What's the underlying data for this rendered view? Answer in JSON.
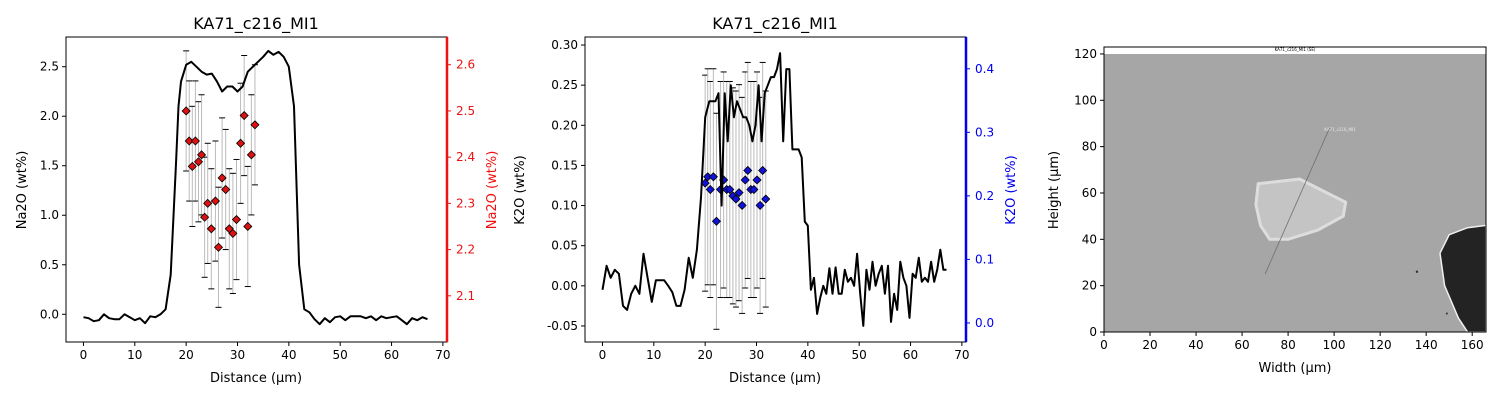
{
  "chart_data": [
    {
      "type": "line",
      "title": "KA71_c216_MI1",
      "xlabel": "Distance (µm)",
      "ylabel": "Na2O (wt%)",
      "ylabel_right": "Na2O (wt%)",
      "xlim": [
        -3.4,
        70.8
      ],
      "ylim": [
        -0.28,
        2.8
      ],
      "ylim_right": [
        2.0,
        2.66
      ],
      "x_ticks": [
        0,
        10,
        20,
        30,
        40,
        50,
        60,
        70
      ],
      "y_ticks": [
        0.0,
        0.5,
        1.0,
        1.5,
        2.0,
        2.5
      ],
      "y_ticks_right": [
        2.1,
        2.2,
        2.3,
        2.4,
        2.5,
        2.6
      ],
      "grid": false,
      "colors": {
        "profile": "#000000",
        "points": "#dd1111",
        "right_axis": "#ee1111",
        "errorbars": "#bbbbbb"
      },
      "profile": {
        "x": [
          0,
          1,
          2,
          3,
          4,
          5,
          6,
          7,
          8,
          9,
          10,
          11,
          12,
          13,
          14,
          15,
          16,
          17,
          18,
          18.5,
          19,
          20,
          21,
          22,
          23,
          24,
          25,
          26,
          27,
          28,
          29,
          30,
          31,
          32,
          33,
          34,
          35,
          36,
          37,
          38,
          39,
          40,
          41,
          42,
          43,
          44,
          45,
          46,
          47,
          48,
          49,
          50,
          51,
          52,
          53,
          54,
          55,
          56,
          57,
          58,
          59,
          60,
          61,
          62,
          63,
          64,
          65,
          66,
          67
        ],
        "y": [
          -0.03,
          -0.04,
          -0.07,
          -0.06,
          0.0,
          -0.04,
          -0.05,
          -0.05,
          0.0,
          -0.03,
          -0.06,
          -0.04,
          -0.09,
          -0.02,
          -0.03,
          0.0,
          0.05,
          0.4,
          1.5,
          2.1,
          2.35,
          2.52,
          2.55,
          2.5,
          2.45,
          2.42,
          2.43,
          2.35,
          2.25,
          2.3,
          2.3,
          2.25,
          2.3,
          2.45,
          2.5,
          2.55,
          2.6,
          2.66,
          2.62,
          2.65,
          2.6,
          2.5,
          2.1,
          0.5,
          0.05,
          0.02,
          -0.05,
          -0.1,
          -0.04,
          -0.08,
          -0.03,
          -0.02,
          -0.06,
          -0.02,
          -0.02,
          -0.02,
          -0.04,
          -0.02,
          -0.06,
          -0.02,
          -0.04,
          -0.03,
          -0.02,
          -0.06,
          -0.1,
          -0.04,
          -0.06,
          -0.03,
          -0.05
        ]
      },
      "points": [
        {
          "x": 20.0,
          "y": 2.5,
          "err": 0.13
        },
        {
          "x": 20.6,
          "y": 2.435,
          "err": 0.13
        },
        {
          "x": 21.2,
          "y": 2.38,
          "err": 0.13
        },
        {
          "x": 21.8,
          "y": 2.435,
          "err": 0.13
        },
        {
          "x": 22.4,
          "y": 2.39,
          "err": 0.13
        },
        {
          "x": 23.0,
          "y": 2.405,
          "err": 0.13
        },
        {
          "x": 23.6,
          "y": 2.27,
          "err": 0.13
        },
        {
          "x": 24.2,
          "y": 2.3,
          "err": 0.13
        },
        {
          "x": 24.9,
          "y": 2.245,
          "err": 0.13
        },
        {
          "x": 25.7,
          "y": 2.305,
          "err": 0.13
        },
        {
          "x": 26.3,
          "y": 2.205,
          "err": 0.13
        },
        {
          "x": 27.0,
          "y": 2.355,
          "err": 0.13
        },
        {
          "x": 27.7,
          "y": 2.33,
          "err": 0.13
        },
        {
          "x": 28.4,
          "y": 2.245,
          "err": 0.13
        },
        {
          "x": 29.1,
          "y": 2.235,
          "err": 0.13
        },
        {
          "x": 29.8,
          "y": 2.265,
          "err": 0.13
        },
        {
          "x": 30.6,
          "y": 2.43,
          "err": 0.13
        },
        {
          "x": 31.3,
          "y": 2.49,
          "err": 0.13
        },
        {
          "x": 32.0,
          "y": 2.25,
          "err": 0.13
        },
        {
          "x": 32.7,
          "y": 2.405,
          "err": 0.13
        },
        {
          "x": 33.4,
          "y": 2.47,
          "err": 0.13
        }
      ]
    },
    {
      "type": "line",
      "title": "KA71_c216_MI1",
      "xlabel": "Distance (µm)",
      "ylabel": "K2O (wt%)",
      "ylabel_right": "K2O (wt%)",
      "xlim": [
        -3.4,
        70.8
      ],
      "ylim": [
        -0.07,
        0.31
      ],
      "ylim_right": [
        -0.03,
        0.45
      ],
      "x_ticks": [
        0,
        10,
        20,
        30,
        40,
        50,
        60,
        70
      ],
      "y_ticks": [
        -0.05,
        0.0,
        0.05,
        0.1,
        0.15,
        0.2,
        0.25,
        0.3
      ],
      "y_ticks_right": [
        0.0,
        0.1,
        0.2,
        0.3,
        0.4
      ],
      "grid": false,
      "colors": {
        "profile": "#000000",
        "points": "#1111dd",
        "right_axis": "#0000ee",
        "errorbars": "#bbbbbb"
      },
      "profile": {
        "x": [
          0,
          0.8,
          1.6,
          2.4,
          3.2,
          4.0,
          4.8,
          5.6,
          6.4,
          7.2,
          8.0,
          8.8,
          9.6,
          10.4,
          11.2,
          12.0,
          12.8,
          13.6,
          14.4,
          15.2,
          16.0,
          16.8,
          17.6,
          18.4,
          19.2,
          20.0,
          20.8,
          21.4,
          22.0,
          22.6,
          23.2,
          23.8,
          24.4,
          25.0,
          25.6,
          26.2,
          26.8,
          27.4,
          28.0,
          28.6,
          29.2,
          29.8,
          30.4,
          31.0,
          31.6,
          32.2,
          32.8,
          33.4,
          34.0,
          34.6,
          35.2,
          35.8,
          36.4,
          37.0,
          37.6,
          38.2,
          38.8,
          39.4,
          40.0,
          40.6,
          41.2,
          41.8,
          42.4,
          43.0,
          43.6,
          44.2,
          44.8,
          45.4,
          46.0,
          46.6,
          47.2,
          47.8,
          48.4,
          49.0,
          49.6,
          50.2,
          50.8,
          51.4,
          52.0,
          52.6,
          53.2,
          53.8,
          54.4,
          55.0,
          55.6,
          56.2,
          56.8,
          57.4,
          58.0,
          58.6,
          59.2,
          59.8,
          60.4,
          61.0,
          61.6,
          62.2,
          62.8,
          63.4,
          64.0,
          64.6,
          65.2,
          65.8,
          66.4,
          67.0
        ],
        "y": [
          -0.005,
          0.025,
          0.01,
          0.02,
          0.015,
          -0.025,
          -0.03,
          -0.01,
          0.0,
          -0.01,
          0.04,
          0.01,
          -0.02,
          0.007,
          0.007,
          0.007,
          0.0,
          -0.008,
          -0.025,
          -0.025,
          -0.005,
          0.035,
          0.01,
          0.045,
          0.11,
          0.21,
          0.23,
          0.23,
          0.23,
          0.24,
          0.1,
          0.24,
          0.18,
          0.25,
          0.21,
          0.23,
          0.22,
          0.21,
          0.21,
          0.2,
          0.18,
          0.2,
          0.25,
          0.18,
          0.24,
          0.25,
          0.26,
          0.26,
          0.27,
          0.29,
          0.18,
          0.27,
          0.27,
          0.17,
          0.17,
          0.17,
          0.16,
          0.08,
          0.075,
          -0.005,
          0.01,
          -0.035,
          -0.015,
          0.0,
          -0.01,
          0.022,
          -0.01,
          0.023,
          -0.01,
          -0.01,
          0.02,
          0.005,
          0.01,
          0.0,
          0.04,
          -0.01,
          -0.05,
          0.02,
          -0.005,
          0.03,
          0.0,
          0.015,
          0.025,
          -0.01,
          0.025,
          -0.045,
          -0.01,
          -0.03,
          0.03,
          0.01,
          0.0,
          -0.04,
          0.015,
          0.01,
          0.035,
          0.005,
          0.01,
          0.005,
          0.03,
          0.005,
          0.02,
          0.045,
          0.02,
          0.02
        ]
      },
      "points": [
        {
          "x": 20.0,
          "y": 0.22,
          "err": 0.17
        },
        {
          "x": 20.5,
          "y": 0.23,
          "err": 0.17
        },
        {
          "x": 21.0,
          "y": 0.21,
          "err": 0.17
        },
        {
          "x": 21.6,
          "y": 0.23,
          "err": 0.17
        },
        {
          "x": 22.2,
          "y": 0.16,
          "err": 0.17
        },
        {
          "x": 23.0,
          "y": 0.21,
          "err": 0.17
        },
        {
          "x": 23.6,
          "y": 0.225,
          "err": 0.17
        },
        {
          "x": 24.2,
          "y": 0.21,
          "err": 0.17
        },
        {
          "x": 24.8,
          "y": 0.21,
          "err": 0.17
        },
        {
          "x": 25.4,
          "y": 0.2,
          "err": 0.17
        },
        {
          "x": 26.0,
          "y": 0.195,
          "err": 0.17
        },
        {
          "x": 26.6,
          "y": 0.205,
          "err": 0.17
        },
        {
          "x": 27.2,
          "y": 0.185,
          "err": 0.17
        },
        {
          "x": 27.8,
          "y": 0.225,
          "err": 0.17
        },
        {
          "x": 28.3,
          "y": 0.24,
          "err": 0.17
        },
        {
          "x": 28.9,
          "y": 0.21,
          "err": 0.17
        },
        {
          "x": 29.5,
          "y": 0.21,
          "err": 0.17
        },
        {
          "x": 30.1,
          "y": 0.225,
          "err": 0.17
        },
        {
          "x": 30.7,
          "y": 0.185,
          "err": 0.17
        },
        {
          "x": 31.2,
          "y": 0.24,
          "err": 0.17
        },
        {
          "x": 31.8,
          "y": 0.195,
          "err": 0.17
        }
      ]
    },
    {
      "type": "image",
      "title": "",
      "xlabel": "Width (µm)",
      "ylabel": "Height (µm)",
      "xlim": [
        0,
        166
      ],
      "ylim": [
        0,
        123
      ],
      "x_ticks": [
        0,
        20,
        40,
        60,
        80,
        100,
        120,
        140,
        160
      ],
      "y_ticks": [
        0,
        20,
        40,
        60,
        80,
        100,
        120
      ],
      "image_label": "KA71_c216_MI1 (SE)",
      "transect_label": "KA71_c216_MI1",
      "transect": {
        "start": [
          70,
          25
        ],
        "end": [
          98,
          88
        ]
      },
      "inclusion": [
        [
          67,
          64
        ],
        [
          85,
          66
        ],
        [
          97,
          60
        ],
        [
          105,
          56
        ],
        [
          104,
          50
        ],
        [
          93,
          44
        ],
        [
          80,
          40
        ],
        [
          72,
          40
        ],
        [
          68,
          46
        ],
        [
          66,
          55
        ]
      ],
      "dark_region": [
        [
          166,
          46
        ],
        [
          158,
          45
        ],
        [
          150,
          42
        ],
        [
          146,
          34
        ],
        [
          148,
          20
        ],
        [
          154,
          6
        ],
        [
          158,
          0
        ],
        [
          166,
          0
        ]
      ],
      "colors": {
        "background": "#a6a6a6",
        "inclusion": "#c4c4c4",
        "inclusion_rim": "#dddddd",
        "dark_region": "#232323",
        "transect": "#707070"
      }
    }
  ]
}
